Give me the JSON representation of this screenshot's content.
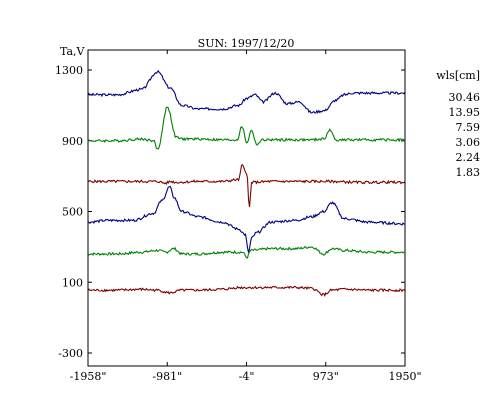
{
  "chart_data": {
    "type": "line",
    "title": "SUN: 1997/12/20",
    "ylabel": "Ta,V",
    "xlabel": "",
    "xlim": [
      -1958,
      1950
    ],
    "ylim": [
      -300,
      1300
    ],
    "x_ticks": [
      {
        "value": -1958,
        "label": "-1958\""
      },
      {
        "value": -981,
        "label": "-981\""
      },
      {
        "value": -4,
        "label": "-4\""
      },
      {
        "value": 973,
        "label": "973\""
      },
      {
        "value": 1950,
        "label": "1950\""
      }
    ],
    "y_ticks": [
      {
        "value": 1300,
        "label": "1300"
      },
      {
        "value": 900,
        "label": "900"
      },
      {
        "value": 500,
        "label": "500"
      },
      {
        "value": 100,
        "label": "100"
      },
      {
        "value": -300,
        "label": "-300"
      }
    ],
    "legend": {
      "title": "wls[cm]",
      "placement": "right",
      "items": [
        "30.46",
        "13.95",
        "7.59",
        "3.06",
        "2.24",
        "1.83"
      ]
    },
    "series": [
      {
        "name": "30.46",
        "color": "#000080",
        "x": [
          -1958,
          -1600,
          -1300,
          -1100,
          -950,
          -800,
          -600,
          -300,
          -100,
          0,
          100,
          200,
          350,
          500,
          650,
          800,
          950,
          1100,
          1200,
          1300,
          1500,
          1700,
          1950
        ],
        "y": [
          1160,
          1160,
          1190,
          1290,
          1200,
          1100,
          1080,
          1080,
          1100,
          1140,
          1160,
          1120,
          1170,
          1110,
          1120,
          1060,
          1070,
          1130,
          1160,
          1170,
          1170,
          1170,
          1170
        ]
      },
      {
        "name": "13.95",
        "color": "#008000",
        "x": [
          -1958,
          -1600,
          -1300,
          -1150,
          -1100,
          -980,
          -870,
          -800,
          -600,
          -300,
          -120,
          -60,
          0,
          60,
          120,
          200,
          400,
          600,
          800,
          950,
          1020,
          1100,
          1300,
          1600,
          1950
        ],
        "y": [
          900,
          900,
          910,
          900,
          850,
          1090,
          920,
          910,
          910,
          905,
          905,
          980,
          890,
          960,
          880,
          905,
          905,
          905,
          905,
          910,
          960,
          905,
          905,
          905,
          905
        ]
      },
      {
        "name": "7.59",
        "color": "#800000",
        "x": [
          -1958,
          -1500,
          -1100,
          -1000,
          -940,
          -870,
          -600,
          -300,
          -100,
          -60,
          0,
          30,
          60,
          300,
          700,
          1000,
          1400,
          1700,
          1950
        ],
        "y": [
          670,
          670,
          670,
          660,
          670,
          665,
          670,
          670,
          680,
          760,
          720,
          520,
          665,
          670,
          670,
          670,
          665,
          665,
          665
        ]
      },
      {
        "name": "3.06",
        "color": "#000080",
        "x": [
          -1958,
          -1700,
          -1400,
          -1150,
          -1050,
          -950,
          -900,
          -800,
          -600,
          -300,
          -100,
          -20,
          20,
          60,
          120,
          300,
          600,
          800,
          950,
          1050,
          1200,
          1500,
          1950
        ],
        "y": [
          440,
          450,
          450,
          490,
          560,
          640,
          580,
          500,
          470,
          440,
          400,
          370,
          270,
          350,
          380,
          440,
          450,
          470,
          500,
          550,
          460,
          440,
          430
        ]
      },
      {
        "name": "2.24",
        "color": "#008000",
        "x": [
          -1958,
          -1600,
          -1300,
          -1100,
          -1000,
          -900,
          -800,
          -600,
          -300,
          -50,
          0,
          50,
          300,
          600,
          800,
          950,
          1050,
          1200,
          1500,
          1950
        ],
        "y": [
          260,
          260,
          270,
          280,
          270,
          290,
          260,
          260,
          270,
          270,
          240,
          280,
          290,
          290,
          300,
          260,
          290,
          280,
          270,
          270
        ]
      },
      {
        "name": "1.83",
        "color": "#800000",
        "x": [
          -1958,
          -1600,
          -1300,
          -1100,
          -950,
          -800,
          -600,
          -300,
          -100,
          100,
          300,
          600,
          800,
          950,
          1050,
          1200,
          1500,
          1950
        ],
        "y": [
          55,
          55,
          60,
          55,
          40,
          55,
          55,
          60,
          70,
          70,
          70,
          70,
          65,
          30,
          55,
          60,
          55,
          55
        ]
      }
    ]
  }
}
